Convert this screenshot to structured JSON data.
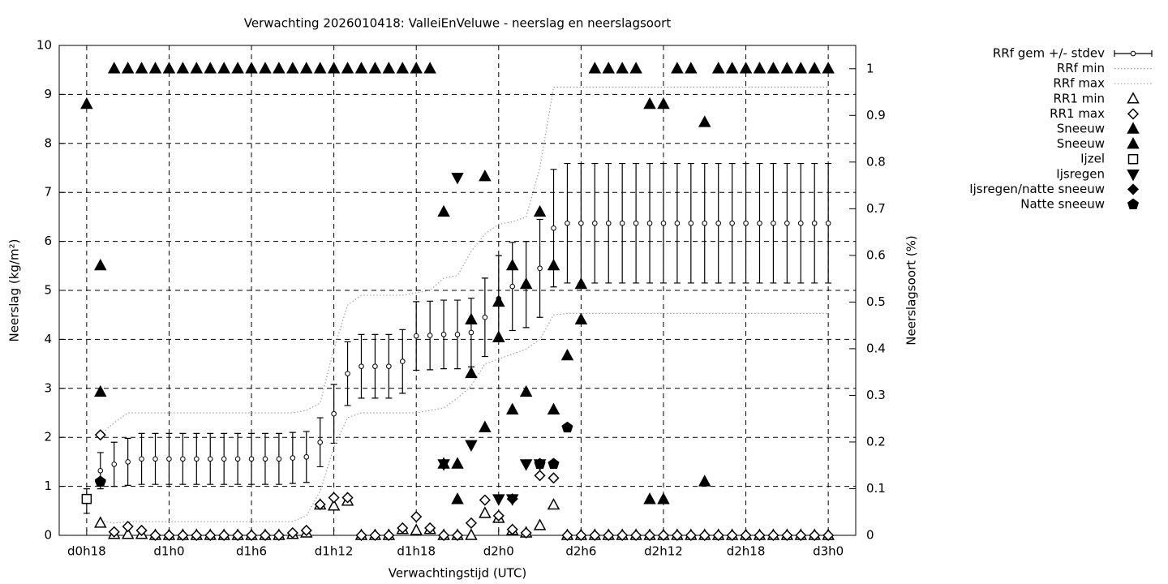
{
  "chart_data": {
    "type": "line",
    "title": "Verwachting 2026010418: ValleiEnVeluwe - neerslag en neerslagsoort",
    "x_label": "Verwachtingstijd (UTC)",
    "y_label": "Neerslag (kg/m²)",
    "y2_label": "Neerslagsoort (%)",
    "xlim": [
      16,
      74
    ],
    "ylim": [
      0,
      10
    ],
    "y2lim": [
      0,
      1.05
    ],
    "xticks": [
      {
        "value": 18,
        "label": "d0h18"
      },
      {
        "value": 24,
        "label": "d1h0"
      },
      {
        "value": 30,
        "label": "d1h6"
      },
      {
        "value": 36,
        "label": "d1h12"
      },
      {
        "value": 42,
        "label": "d1h18"
      },
      {
        "value": 48,
        "label": "d2h0"
      },
      {
        "value": 54,
        "label": "d2h6"
      },
      {
        "value": 60,
        "label": "d2h12"
      },
      {
        "value": 66,
        "label": "d2h18"
      },
      {
        "value": 72,
        "label": "d3h0"
      }
    ],
    "yticks": [
      0,
      1,
      2,
      3,
      4,
      5,
      6,
      7,
      8,
      9,
      10
    ],
    "y2ticks": [
      0,
      0.1,
      0.2,
      0.3,
      0.4,
      0.5,
      0.6,
      0.7,
      0.8,
      0.9,
      1
    ],
    "grid": true,
    "legend": "right",
    "x": [
      18,
      19,
      20,
      21,
      22,
      23,
      24,
      25,
      26,
      27,
      28,
      29,
      30,
      31,
      32,
      33,
      34,
      35,
      36,
      37,
      38,
      39,
      40,
      41,
      42,
      43,
      44,
      45,
      46,
      47,
      48,
      49,
      50,
      51,
      52,
      53,
      54,
      55,
      56,
      57,
      58,
      59,
      60,
      61,
      62,
      63,
      64,
      65,
      66,
      67,
      68,
      69,
      70,
      71,
      72
    ],
    "series": [
      {
        "name": "RRf gem +/- stdev",
        "style": "errorbar",
        "color": "#000000",
        "values": [
          0.7,
          1.32,
          1.45,
          1.5,
          1.56,
          1.56,
          1.56,
          1.56,
          1.56,
          1.56,
          1.56,
          1.56,
          1.56,
          1.56,
          1.56,
          1.58,
          1.6,
          1.9,
          2.48,
          3.3,
          3.45,
          3.45,
          3.45,
          3.55,
          4.07,
          4.08,
          4.1,
          4.1,
          4.14,
          4.45,
          4.83,
          5.08,
          5.12,
          5.45,
          6.27,
          6.37,
          6.37,
          6.37,
          6.37,
          6.37,
          6.37,
          6.37,
          6.37,
          6.37,
          6.37,
          6.37,
          6.37,
          6.37,
          6.37,
          6.37,
          6.37,
          6.37,
          6.37,
          6.37,
          6.37
        ],
        "errors": [
          0.25,
          0.37,
          0.45,
          0.48,
          0.52,
          0.52,
          0.52,
          0.52,
          0.52,
          0.52,
          0.52,
          0.52,
          0.52,
          0.52,
          0.52,
          0.52,
          0.52,
          0.5,
          0.6,
          0.65,
          0.65,
          0.65,
          0.65,
          0.65,
          0.7,
          0.7,
          0.7,
          0.7,
          0.7,
          0.8,
          0.88,
          0.9,
          0.88,
          1.0,
          1.2,
          1.22,
          1.22,
          1.22,
          1.22,
          1.22,
          1.22,
          1.22,
          1.22,
          1.22,
          1.22,
          1.22,
          1.22,
          1.22,
          1.22,
          1.22,
          1.22,
          1.22,
          1.22,
          1.22,
          1.22
        ]
      },
      {
        "name": "RRf min",
        "style": "dotted",
        "color": "#a0a0a0",
        "values": [
          null,
          0.3,
          0.25,
          0.28,
          0.28,
          0.28,
          0.28,
          0.28,
          0.28,
          0.28,
          0.28,
          0.28,
          0.28,
          0.28,
          0.28,
          0.28,
          0.4,
          0.9,
          1.8,
          2.4,
          2.5,
          2.5,
          2.5,
          2.5,
          2.5,
          2.55,
          2.6,
          2.8,
          3.05,
          3.5,
          3.6,
          3.7,
          3.8,
          4.0,
          4.5,
          4.53,
          4.53,
          4.53,
          4.53,
          4.53,
          4.53,
          4.53,
          4.53,
          4.53,
          4.53,
          4.53,
          4.53,
          4.53,
          4.53,
          4.53,
          4.53,
          4.53,
          4.53,
          4.53,
          4.53
        ]
      },
      {
        "name": "RRf max",
        "style": "dotted",
        "color": "#a0a0a0",
        "values": [
          null,
          2.05,
          2.3,
          2.5,
          2.5,
          2.5,
          2.5,
          2.5,
          2.5,
          2.5,
          2.5,
          2.5,
          2.5,
          2.5,
          2.5,
          2.5,
          2.55,
          2.7,
          3.8,
          4.7,
          4.9,
          4.9,
          4.9,
          4.9,
          4.95,
          5.0,
          5.25,
          5.3,
          5.8,
          6.15,
          6.35,
          6.4,
          6.5,
          7.5,
          9.15,
          9.15,
          9.15,
          9.15,
          9.15,
          9.15,
          9.15,
          9.15,
          9.15,
          9.15,
          9.15,
          9.15,
          9.15,
          9.15,
          9.15,
          9.15,
          9.15,
          9.15,
          9.15,
          9.15,
          9.15
        ]
      },
      {
        "name": "RR1 min",
        "style": "points",
        "marker": "tri-up",
        "filled": false,
        "color": "#000000",
        "values": [
          null,
          0.25,
          0.02,
          0.02,
          0.02,
          0,
          0,
          0,
          0,
          0,
          0,
          0,
          0,
          0,
          0,
          0.02,
          0.05,
          0.62,
          0.6,
          0.7,
          0,
          0,
          0,
          0.12,
          0.1,
          0.12,
          0,
          0,
          0,
          0.45,
          0.35,
          0.1,
          0.05,
          0.2,
          0.62,
          0,
          0,
          0,
          0,
          0,
          0,
          0,
          0,
          0,
          0,
          0,
          0,
          0,
          0,
          0,
          0,
          0,
          0,
          0,
          0
        ]
      },
      {
        "name": "RR1 max",
        "style": "points",
        "marker": "diamond",
        "filled": false,
        "color": "#000000",
        "values": [
          null,
          2.05,
          0.07,
          0.18,
          0.1,
          0,
          0,
          0,
          0,
          0,
          0,
          0,
          0,
          0,
          0,
          0.05,
          0.1,
          0.63,
          0.77,
          0.77,
          0,
          0,
          0,
          0.15,
          0.38,
          0.15,
          0,
          0,
          0.25,
          0.72,
          0.4,
          0.12,
          0.05,
          1.22,
          1.17,
          0,
          0,
          0,
          0,
          0,
          0,
          0,
          0,
          0,
          0,
          0,
          0,
          0,
          0,
          0,
          0,
          0,
          0,
          0,
          0
        ]
      },
      {
        "name": "Sneeuw",
        "style": "points",
        "marker": "tri-up",
        "filled": true,
        "color": "#000000",
        "axis": "y2",
        "x": [
          18,
          19,
          20,
          21,
          22,
          23,
          24,
          25,
          26,
          27,
          28,
          29,
          30,
          31,
          32,
          33,
          34,
          35,
          36,
          37,
          38,
          39,
          40,
          41,
          42,
          43,
          44,
          45,
          46,
          47,
          48,
          49,
          50,
          51,
          52,
          53,
          54,
          55,
          56,
          57,
          58,
          59,
          60,
          61,
          62,
          63,
          64,
          65,
          66,
          67,
          68,
          69,
          70,
          71,
          72
        ],
        "values": [
          0.924,
          0.578,
          1,
          1,
          1,
          1,
          1,
          1,
          1,
          1,
          1,
          1,
          1,
          1,
          1,
          1,
          1,
          1,
          1,
          1,
          1,
          1,
          1,
          1,
          1,
          1,
          0.693,
          0.153,
          0.462,
          0.769,
          0.5,
          0.578,
          0.538,
          0.693,
          0.578,
          0.385,
          0.538,
          1,
          1,
          1,
          1,
          0.924,
          0.924,
          1,
          1,
          0.885,
          1,
          1,
          1,
          1,
          1,
          1,
          1,
          1,
          1
        ]
      },
      {
        "name": "Sneeuw",
        "style": "points",
        "marker": "tri-up",
        "filled": true,
        "color": "#000000",
        "axis": "y2",
        "x": [
          19,
          44,
          45,
          46,
          47,
          48,
          49,
          50,
          52,
          54,
          59,
          60,
          63
        ],
        "values": [
          0.307,
          0.153,
          0.077,
          0.347,
          0.231,
          0.424,
          0.269,
          0.307,
          0.269,
          0.462,
          0.077,
          0.077,
          0.115
        ]
      },
      {
        "name": "Ijzel",
        "style": "points",
        "marker": "square",
        "filled": false,
        "color": "#000000",
        "axis": "y2",
        "x": [
          18
        ],
        "values": [
          0.078
        ]
      },
      {
        "name": "Ijsregen",
        "style": "points",
        "marker": "tri-down",
        "filled": true,
        "color": "#000000",
        "axis": "y2",
        "x": [
          44,
          45,
          46,
          48,
          49,
          50,
          51
        ],
        "values": [
          0.153,
          0.767,
          0.194,
          0.078,
          0.078,
          0.153,
          0.153
        ]
      },
      {
        "name": "Ijsregen/natte sneeuw",
        "style": "points",
        "marker": "diamond",
        "filled": true,
        "color": "#000000",
        "axis": "y2",
        "x": [
          19,
          49
        ],
        "values": [
          0.115,
          0.078
        ]
      },
      {
        "name": "Natte sneeuw",
        "style": "points",
        "marker": "pentagon",
        "filled": true,
        "color": "#000000",
        "axis": "y2",
        "x": [
          19,
          51,
          52,
          53
        ],
        "values": [
          0.115,
          0.153,
          0.153,
          0.231
        ]
      }
    ]
  }
}
